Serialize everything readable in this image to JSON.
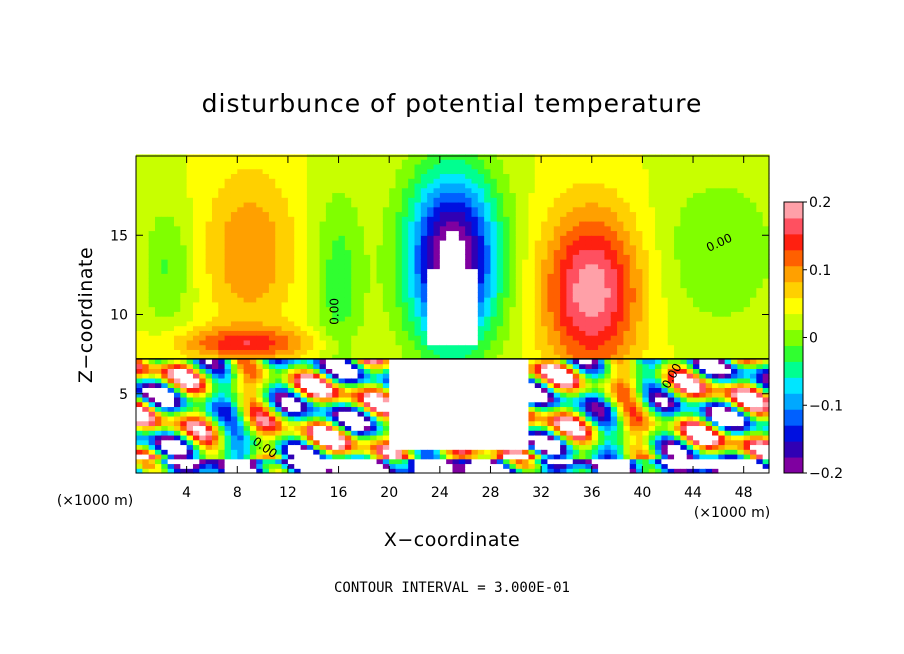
{
  "chart_data": {
    "type": "heatmap",
    "title": "disturbunce of potential temperature",
    "xlabel": "X−coordinate",
    "ylabel": "Z−coordinate",
    "x_unit_left": "(×1000 m)",
    "x_unit_right": "(×1000 m)",
    "note": "CONTOUR INTERVAL = 3.000E-01",
    "xlim": [
      0,
      50
    ],
    "ylim": [
      0,
      20
    ],
    "x_ticks": [
      4,
      8,
      12,
      16,
      20,
      24,
      28,
      32,
      36,
      40,
      44,
      48
    ],
    "x_tick_labels": [
      "4",
      "8",
      "12",
      "16",
      "20",
      "24",
      "28",
      "32",
      "36",
      "40",
      "44",
      "48"
    ],
    "y_ticks": [
      5,
      10,
      15
    ],
    "y_tick_labels": [
      "5",
      "10",
      "15"
    ],
    "colorbar": {
      "range": [
        -0.2,
        0.2
      ],
      "tick_values": [
        0.2,
        0.1,
        0,
        -0.1,
        -0.2
      ],
      "tick_labels": [
        "0.2",
        "0.1",
        "0",
        "−0.1",
        "−0.2"
      ],
      "colors": [
        "#7f00a0",
        "#3000b4",
        "#0010e0",
        "#0060ff",
        "#00a8ff",
        "#00e6ff",
        "#00ff90",
        "#30ff30",
        "#80ff00",
        "#c8ff00",
        "#ffff00",
        "#ffd000",
        "#ffa000",
        "#ff6000",
        "#ff2010",
        "#ff5060",
        "#ffa0a8"
      ]
    },
    "contour_labels": [
      "0.00",
      "0.00",
      "0.00",
      "0.00"
    ],
    "grid": false,
    "legend": "colorbar-right"
  }
}
